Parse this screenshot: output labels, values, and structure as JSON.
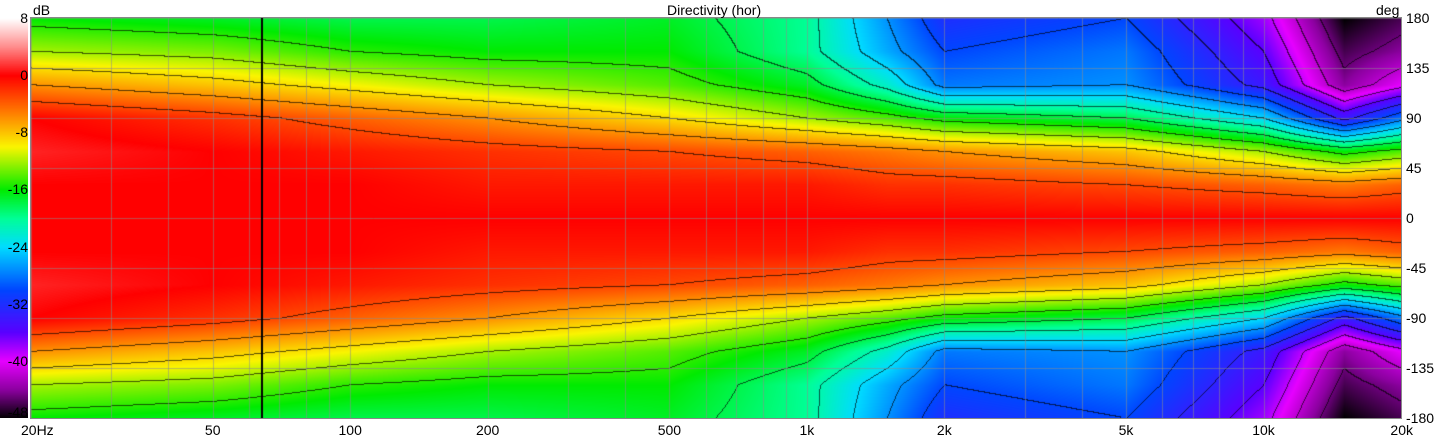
{
  "chart_data": {
    "type": "heatmap",
    "title": "Directivity (hor)",
    "colorbar_label": "dB",
    "yaxis_label": "deg",
    "x_scale": "log",
    "xlim": [
      20,
      20000
    ],
    "ylim": [
      -180,
      180
    ],
    "clim": [
      -48,
      8
    ],
    "x_ticks": [
      {
        "v": 20,
        "t": "20Hz"
      },
      {
        "v": 50,
        "t": "50"
      },
      {
        "v": 100,
        "t": "100"
      },
      {
        "v": 200,
        "t": "200"
      },
      {
        "v": 500,
        "t": "500"
      },
      {
        "v": 1000,
        "t": "1k"
      },
      {
        "v": 2000,
        "t": "2k"
      },
      {
        "v": 5000,
        "t": "5k"
      },
      {
        "v": 10000,
        "t": "10k"
      },
      {
        "v": 20000,
        "t": "20k"
      }
    ],
    "y_ticks": [
      180,
      135,
      90,
      45,
      0,
      -45,
      -90,
      -135,
      -180
    ],
    "colorbar_ticks": [
      8,
      0,
      -8,
      -16,
      -24,
      -32,
      -40,
      -48
    ],
    "contour_step_db": 3,
    "cursor_frequency_hz": 64,
    "grid": true,
    "angles_deg": [
      0,
      30,
      60,
      90,
      120,
      150,
      180
    ],
    "frequencies_hz": [
      20,
      50,
      100,
      200,
      500,
      1000,
      1500,
      2000,
      5000,
      10000,
      15000,
      20000
    ],
    "values_db": [
      [
        0,
        0,
        1,
        0,
        -6,
        -12,
        -16
      ],
      [
        0,
        0,
        0,
        -2,
        -8,
        -13,
        -17
      ],
      [
        0,
        0,
        -1,
        -4,
        -10,
        -15,
        -18
      ],
      [
        0,
        -1,
        -2,
        -6,
        -12,
        -16,
        -18
      ],
      [
        0,
        -1,
        -3,
        -9,
        -14,
        -16,
        -17
      ],
      [
        0,
        -1,
        -4,
        -12,
        -17,
        -20,
        -20
      ],
      [
        0,
        -2,
        -5,
        -14,
        -22,
        -26,
        -27
      ],
      [
        0,
        -2,
        -6,
        -16,
        -28,
        -30,
        -32
      ],
      [
        0,
        -3,
        -8,
        -18,
        -27,
        -28,
        -30
      ],
      [
        0,
        -4,
        -12,
        -24,
        -34,
        -36,
        -38
      ],
      [
        0,
        -5,
        -16,
        -34,
        -44,
        -46,
        -48
      ],
      [
        0,
        -4,
        -14,
        -28,
        -40,
        -44,
        -46
      ]
    ]
  }
}
